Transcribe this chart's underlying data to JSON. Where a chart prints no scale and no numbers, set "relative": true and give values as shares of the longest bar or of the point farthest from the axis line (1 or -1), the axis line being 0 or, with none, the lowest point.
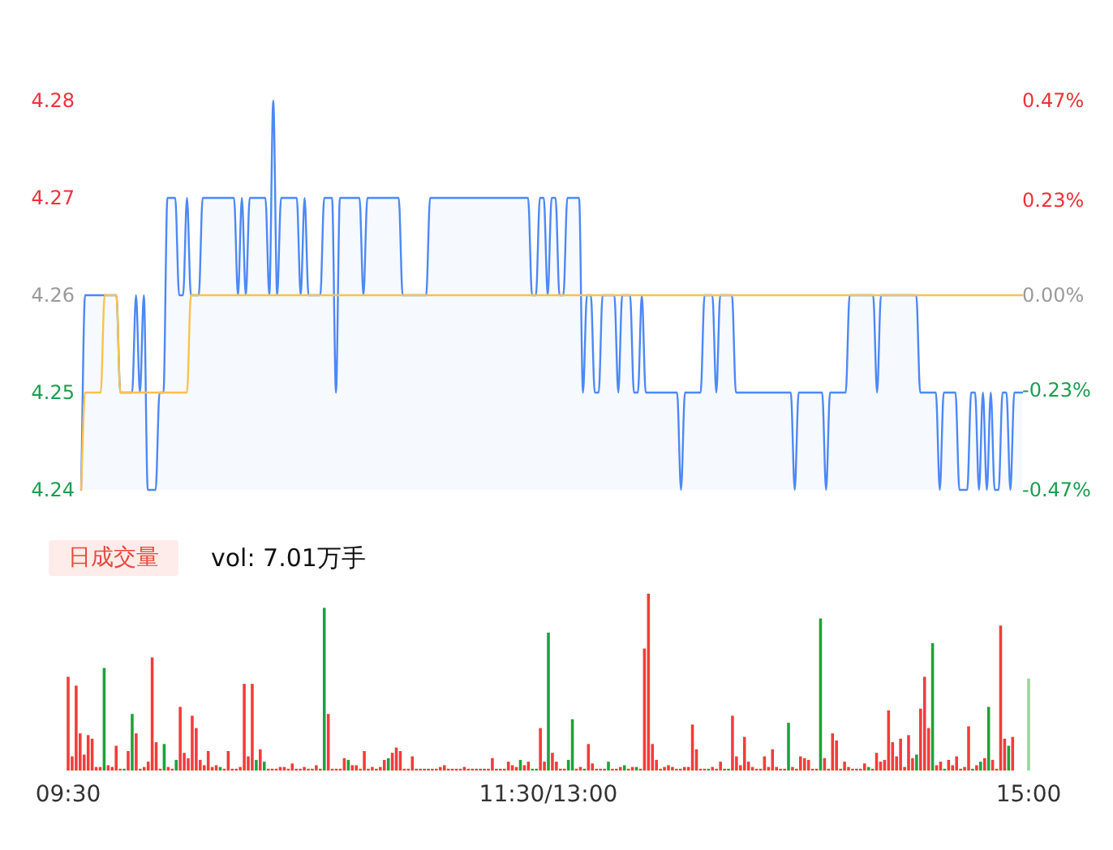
{
  "chart_data": [
    {
      "type": "area",
      "ylim": [
        4.24,
        4.28
      ],
      "yticks": [
        4.24,
        4.25,
        4.26,
        4.27,
        4.28
      ],
      "y2lim": [
        -0.47,
        0.47
      ],
      "y2ticks": [
        {
          "value": -0.47,
          "label": "-0.47%"
        },
        {
          "value": -0.23,
          "label": "-0.23%"
        },
        {
          "value": 0,
          "label": "0.00%"
        },
        {
          "value": 0.23,
          "label": "0.23%"
        },
        {
          "value": 0.47,
          "label": "0.47%"
        }
      ],
      "tick_labels": "y",
      "categories": [
        null,
        null,
        null,
        null,
        null,
        null,
        null,
        null,
        null,
        null,
        null,
        null,
        null,
        null,
        null,
        null,
        null,
        null,
        null,
        null,
        null,
        null,
        null,
        null,
        null,
        null,
        null,
        null,
        null,
        null,
        null,
        null,
        null,
        null,
        null,
        null,
        null,
        null,
        null,
        null,
        null,
        null,
        null,
        null,
        null,
        null,
        null,
        null,
        null,
        null,
        null,
        null,
        null,
        null,
        null,
        null,
        null,
        null,
        null,
        null,
        null,
        null,
        null,
        null,
        null,
        null,
        null,
        null,
        null,
        null,
        null,
        null,
        null,
        null,
        null,
        null,
        null,
        null,
        null,
        null,
        null,
        null,
        null,
        null,
        null,
        null,
        null,
        null,
        null,
        null,
        null,
        null,
        null,
        null,
        null,
        null,
        null,
        null,
        null,
        null,
        null,
        null,
        null,
        null,
        null,
        null,
        null,
        null,
        null,
        null,
        null,
        null,
        null,
        null,
        null,
        null,
        null,
        null,
        null,
        null,
        null,
        null,
        null,
        null,
        null,
        null,
        null,
        null,
        null,
        null,
        null,
        null,
        null,
        null,
        null,
        null,
        null,
        null,
        null,
        null,
        null,
        null,
        null,
        null,
        null,
        null,
        null,
        null,
        null,
        null,
        null,
        null,
        null,
        null,
        null,
        null,
        null,
        null,
        null,
        null,
        null,
        null,
        null,
        null,
        null,
        null,
        null,
        null,
        null,
        null,
        null,
        null,
        null,
        null,
        null,
        null,
        null,
        null,
        null,
        null,
        null,
        null,
        null,
        null,
        null,
        null,
        null,
        null,
        null,
        null,
        null,
        null,
        null,
        null,
        null,
        null,
        null,
        null,
        null,
        null,
        null,
        null,
        null,
        null,
        null,
        null,
        null,
        null,
        null,
        null,
        null,
        null,
        null,
        null,
        null,
        null,
        null,
        null,
        null,
        null,
        null,
        null,
        null,
        null,
        null,
        null,
        null,
        null,
        null,
        null,
        null,
        null,
        null,
        null,
        null,
        null,
        null,
        null,
        null,
        null,
        null
      ],
      "series": [
        {
          "color": "#4d88f5",
          "values": [
            4.24,
            4.26,
            4.26,
            4.26,
            4.26,
            4.26,
            4.26,
            4.26,
            4.26,
            4.26,
            4.25,
            4.25,
            4.25,
            4.25,
            4.26,
            4.25,
            4.26,
            4.24,
            4.24,
            4.24,
            4.25,
            4.25,
            4.27,
            4.27,
            4.27,
            4.26,
            4.26,
            4.27,
            4.26,
            4.26,
            4.26,
            4.27,
            4.27,
            4.27,
            4.27,
            4.27,
            4.27,
            4.27,
            4.27,
            4.27,
            4.26,
            4.27,
            4.26,
            4.27,
            4.27,
            4.27,
            4.27,
            4.27,
            4.26,
            4.28,
            4.26,
            4.27,
            4.27,
            4.27,
            4.27,
            4.27,
            4.26,
            4.27,
            4.26,
            4.26,
            4.26,
            4.26,
            4.27,
            4.27,
            4.27,
            4.25,
            4.27,
            4.27,
            4.27,
            4.27,
            4.27,
            4.27,
            4.26,
            4.27,
            4.27,
            4.27,
            4.27,
            4.27,
            4.27,
            4.27,
            4.27,
            4.27,
            4.26,
            4.26,
            4.26,
            4.26,
            4.26,
            4.26,
            4.26,
            4.27,
            4.27,
            4.27,
            4.27,
            4.27,
            4.27,
            4.27,
            4.27,
            4.27,
            4.27,
            4.27,
            4.27,
            4.27,
            4.27,
            4.27,
            4.27,
            4.27,
            4.27,
            4.27,
            4.27,
            4.27,
            4.27,
            4.27,
            4.27,
            4.27,
            4.27,
            4.26,
            4.26,
            4.27,
            4.27,
            4.26,
            4.27,
            4.27,
            4.26,
            4.26,
            4.27,
            4.27,
            4.27,
            4.27,
            4.25,
            4.26,
            4.26,
            4.25,
            4.25,
            4.26,
            4.26,
            4.26,
            4.26,
            4.25,
            4.26,
            4.26,
            4.26,
            4.25,
            4.25,
            4.26,
            4.25,
            4.25,
            4.25,
            4.25,
            4.25,
            4.25,
            4.25,
            4.25,
            4.25,
            4.24,
            4.25,
            4.25,
            4.25,
            4.25,
            4.25,
            4.26,
            4.26,
            4.26,
            4.25,
            4.26,
            4.26,
            4.26,
            4.26,
            4.25,
            4.25,
            4.25,
            4.25,
            4.25,
            4.25,
            4.25,
            4.25,
            4.25,
            4.25,
            4.25,
            4.25,
            4.25,
            4.25,
            4.25,
            4.24,
            4.25,
            4.25,
            4.25,
            4.25,
            4.25,
            4.25,
            4.25,
            4.24,
            4.25,
            4.25,
            4.25,
            4.25,
            4.25,
            4.26,
            4.26,
            4.26,
            4.26,
            4.26,
            4.26,
            4.26,
            4.25,
            4.26,
            4.26,
            4.26,
            4.26,
            4.26,
            4.26,
            4.26,
            4.26,
            4.26,
            4.26,
            4.25,
            4.25,
            4.25,
            4.25,
            4.25,
            4.24,
            4.25,
            4.25,
            4.25,
            4.25,
            4.24,
            4.24,
            4.24,
            4.25,
            4.25,
            4.24,
            4.25,
            4.24,
            4.25,
            4.24,
            4.24,
            4.25,
            4.25,
            4.24,
            4.25,
            4.25,
            4.25
          ]
        },
        {
          "type": "line",
          "color": "#f9c24e",
          "values": [
            4.24,
            4.25,
            4.25,
            4.25,
            4.25,
            4.25,
            4.26,
            4.26,
            4.26,
            4.26,
            4.25,
            4.25,
            4.25,
            4.25,
            4.25,
            4.25,
            4.25,
            4.25,
            4.25,
            4.25,
            4.25,
            4.25,
            4.25,
            4.25,
            4.25,
            4.25,
            4.25,
            4.25,
            4.26,
            4.26,
            4.26,
            4.26,
            4.26,
            4.26,
            4.26,
            4.26,
            4.26,
            4.26,
            4.26,
            4.26,
            4.26,
            4.26,
            4.26,
            4.26,
            4.26,
            4.26,
            4.26,
            4.26,
            4.26,
            4.26,
            4.26,
            4.26,
            4.26,
            4.26,
            4.26,
            4.26,
            4.26,
            4.26,
            4.26,
            4.26,
            4.26,
            4.26,
            4.26,
            4.26,
            4.26,
            4.26,
            4.26,
            4.26,
            4.26,
            4.26,
            4.26,
            4.26,
            4.26,
            4.26,
            4.26,
            4.26,
            4.26,
            4.26,
            4.26,
            4.26,
            4.26,
            4.26,
            4.26,
            4.26,
            4.26,
            4.26,
            4.26,
            4.26,
            4.26,
            4.26,
            4.26,
            4.26,
            4.26,
            4.26,
            4.26,
            4.26,
            4.26,
            4.26,
            4.26,
            4.26,
            4.26,
            4.26,
            4.26,
            4.26,
            4.26,
            4.26,
            4.26,
            4.26,
            4.26,
            4.26,
            4.26,
            4.26,
            4.26,
            4.26,
            4.26,
            4.26,
            4.26,
            4.26,
            4.26,
            4.26,
            4.26,
            4.26,
            4.26,
            4.26,
            4.26,
            4.26,
            4.26,
            4.26,
            4.26,
            4.26,
            4.26,
            4.26,
            4.26,
            4.26,
            4.26,
            4.26,
            4.26,
            4.26,
            4.26,
            4.26,
            4.26,
            4.26,
            4.26,
            4.26,
            4.26,
            4.26,
            4.26,
            4.26,
            4.26,
            4.26,
            4.26,
            4.26,
            4.26,
            4.26,
            4.26,
            4.26,
            4.26,
            4.26,
            4.26,
            4.26,
            4.26,
            4.26,
            4.26,
            4.26,
            4.26,
            4.26,
            4.26,
            4.26,
            4.26,
            4.26,
            4.26,
            4.26,
            4.26,
            4.26,
            4.26,
            4.26,
            4.26,
            4.26,
            4.26,
            4.26,
            4.26,
            4.26,
            4.26,
            4.26,
            4.26,
            4.26,
            4.26,
            4.26,
            4.26,
            4.26,
            4.26,
            4.26,
            4.26,
            4.26,
            4.26,
            4.26,
            4.26,
            4.26,
            4.26,
            4.26,
            4.26,
            4.26,
            4.26,
            4.26,
            4.26,
            4.26,
            4.26,
            4.26,
            4.26,
            4.26,
            4.26,
            4.26,
            4.26,
            4.26,
            4.26,
            4.26,
            4.26,
            4.26,
            4.26,
            4.26,
            4.26,
            4.26,
            4.26,
            4.26,
            4.26,
            4.26,
            4.26,
            4.26,
            4.26,
            4.26,
            4.26,
            4.26,
            4.26,
            4.26,
            4.26,
            4.26,
            4.26,
            4.26,
            4.26,
            4.26,
            4.26
          ]
        }
      ]
    },
    {
      "type": "bar",
      "title": "日成交量",
      "subtitle": "vol: 7.01万手",
      "relative": true,
      "categories": [
        "09:30",
        null,
        null,
        null,
        null,
        null,
        null,
        null,
        null,
        null,
        null,
        null,
        null,
        null,
        null,
        null,
        null,
        null,
        null,
        null,
        null,
        null,
        null,
        null,
        null,
        null,
        null,
        null,
        null,
        null,
        null,
        null,
        null,
        null,
        null,
        null,
        null,
        null,
        null,
        null,
        null,
        null,
        null,
        null,
        null,
        null,
        null,
        null,
        null,
        null,
        null,
        null,
        null,
        null,
        null,
        null,
        null,
        null,
        null,
        null,
        null,
        null,
        null,
        null,
        null,
        null,
        null,
        null,
        null,
        null,
        null,
        null,
        null,
        null,
        null,
        null,
        null,
        null,
        null,
        null,
        null,
        null,
        null,
        null,
        null,
        null,
        null,
        null,
        null,
        null,
        null,
        null,
        null,
        null,
        null,
        null,
        null,
        null,
        null,
        null,
        null,
        null,
        null,
        null,
        null,
        null,
        null,
        null,
        null,
        null,
        null,
        null,
        null,
        null,
        null,
        null,
        null,
        null,
        null,
        null,
        "11:30/13:00",
        null,
        null,
        null,
        null,
        null,
        null,
        null,
        null,
        null,
        null,
        null,
        null,
        null,
        null,
        null,
        null,
        null,
        null,
        null,
        null,
        null,
        null,
        null,
        null,
        null,
        null,
        null,
        null,
        null,
        null,
        null,
        null,
        null,
        null,
        null,
        null,
        null,
        null,
        null,
        null,
        null,
        null,
        null,
        null,
        null,
        null,
        null,
        null,
        null,
        null,
        null,
        null,
        null,
        null,
        null,
        null,
        null,
        null,
        null,
        null,
        null,
        null,
        null,
        null,
        null,
        null,
        null,
        null,
        null,
        null,
        null,
        null,
        null,
        null,
        null,
        null,
        null,
        null,
        null,
        null,
        null,
        null,
        null,
        null,
        null,
        null,
        null,
        null,
        null,
        null,
        null,
        null,
        null,
        null,
        null,
        null,
        null,
        null,
        null,
        null,
        null,
        null,
        null,
        null,
        null,
        null,
        null,
        null,
        null,
        null,
        null,
        null,
        null,
        null,
        null,
        null,
        null,
        null,
        null,
        "15:00"
      ],
      "values": [
        0.53,
        0.08,
        0.48,
        0.21,
        0.09,
        0.2,
        0.18,
        0.02,
        0.02,
        0.58,
        0.03,
        0.02,
        0.14,
        0.01,
        0.01,
        0.11,
        0.32,
        0.21,
        0.01,
        0.02,
        0.05,
        0.64,
        0.16,
        0.01,
        0.15,
        0.02,
        0.01,
        0.06,
        0.36,
        0.1,
        0.07,
        0.31,
        0.24,
        0.06,
        0.03,
        0.11,
        0.02,
        0.03,
        0.02,
        0.01,
        0.11,
        0.01,
        0.01,
        0.02,
        0.49,
        0.08,
        0.49,
        0.06,
        0.12,
        0.05,
        0.01,
        0.01,
        0.01,
        0.02,
        0.02,
        0.01,
        0.04,
        0.01,
        0.01,
        0.02,
        0.01,
        0.01,
        0.03,
        0.01,
        0.92,
        0.32,
        0.01,
        0.01,
        0.01,
        0.07,
        0.06,
        0.03,
        0.03,
        0.01,
        0.11,
        0.01,
        0.02,
        0.01,
        0.02,
        0.06,
        0.07,
        0.1,
        0.13,
        0.11,
        0.01,
        0.01,
        0.08,
        0.01,
        0.01,
        0.01,
        0.01,
        0.01,
        0.01,
        0.02,
        0.03,
        0.01,
        0.01,
        0.01,
        0.01,
        0.02,
        0.01,
        0.01,
        0.01,
        0.01,
        0.01,
        0.01,
        0.07,
        0.01,
        0.01,
        0.01,
        0.05,
        0.03,
        0.02,
        0.06,
        0.03,
        0.05,
        0.01,
        0.01,
        0.24,
        0.05,
        0.78,
        0.1,
        0.05,
        0.01,
        0.01,
        0.06,
        0.29,
        0.01,
        0.02,
        0.01,
        0.15,
        0.04,
        0.01,
        0.01,
        0.01,
        0.05,
        0.01,
        0.01,
        0.02,
        0.03,
        0.01,
        0.02,
        0.02,
        0.01,
        0.69,
        1,
        0.15,
        0.06,
        0.01,
        0.02,
        0.03,
        0.02,
        0.01,
        0.01,
        0.02,
        0.02,
        0.26,
        0.12,
        0.01,
        0.01,
        0.01,
        0.02,
        0.01,
        0.05,
        0.01,
        0.01,
        0.31,
        0.08,
        0.03,
        0.19,
        0.05,
        0.02,
        0.01,
        0.01,
        0.08,
        0.02,
        0.12,
        0.02,
        0.01,
        0.01,
        0.27,
        0.02,
        0.01,
        0.08,
        0.07,
        0.06,
        0.01,
        0.01,
        0.86,
        0.07,
        0.01,
        0.21,
        0.17,
        0.01,
        0.05,
        0.02,
        0.01,
        0.01,
        0.01,
        0.04,
        0.02,
        0.01,
        0.1,
        0.05,
        0.06,
        0.34,
        0.16,
        0.08,
        0.18,
        0.02,
        0.2,
        0.07,
        0.09,
        0.35,
        0.53,
        0.24,
        0.72,
        0.03,
        0.05,
        0.01,
        0.06,
        0.03,
        0.08,
        0.01,
        0.02,
        0.25,
        0.01,
        0.03,
        0.05,
        0.07,
        0.36,
        0.06,
        0.01,
        0.82,
        0.18,
        0.14,
        0.19,
        null,
        null,
        null,
        0.52
      ],
      "colors": [
        "#f53b3b",
        "#f53b3b",
        "#f53b3b",
        "#f53b3b",
        "#f53b3b",
        "#f53b3b",
        "#f53b3b",
        "#f53b3b",
        "#f53b3b",
        "#1ba33a",
        "#f53b3b",
        "#f53b3b",
        "#f53b3b",
        "#f53b3b",
        "#1ba33a",
        "#f53b3b",
        "#1ba33a",
        "#f53b3b",
        "#f53b3b",
        "#f53b3b",
        "#f53b3b",
        "#f53b3b",
        "#f53b3b",
        "#f53b3b",
        "#1ba33a",
        "#f53b3b",
        "#f53b3b",
        "#1ba33a",
        "#f53b3b",
        "#f53b3b",
        "#f53b3b",
        "#f53b3b",
        "#f53b3b",
        "#f53b3b",
        "#f53b3b",
        "#f53b3b",
        "#f53b3b",
        "#f53b3b",
        "#1ba33a",
        "#f53b3b",
        "#f53b3b",
        "#f53b3b",
        "#f53b3b",
        "#f53b3b",
        "#f53b3b",
        "#f53b3b",
        "#f53b3b",
        "#1ba33a",
        "#f53b3b",
        "#1ba33a",
        "#f53b3b",
        "#f53b3b",
        "#f53b3b",
        "#f53b3b",
        "#f53b3b",
        "#f53b3b",
        "#f53b3b",
        "#f53b3b",
        "#f53b3b",
        "#f53b3b",
        "#f53b3b",
        "#f53b3b",
        "#f53b3b",
        "#f53b3b",
        "#1ba33a",
        "#f53b3b",
        "#f53b3b",
        "#f53b3b",
        "#f53b3b",
        "#f53b3b",
        "#1ba33a",
        "#f53b3b",
        "#f53b3b",
        "#f53b3b",
        "#f53b3b",
        "#f53b3b",
        "#f53b3b",
        "#f53b3b",
        "#f53b3b",
        "#f53b3b",
        "#1ba33a",
        "#f53b3b",
        "#f53b3b",
        "#f53b3b",
        "#f53b3b",
        "#f53b3b",
        "#f53b3b",
        "#f53b3b",
        "#f53b3b",
        "#f53b3b",
        "#f53b3b",
        "#f53b3b",
        "#f53b3b",
        "#f53b3b",
        "#f53b3b",
        "#f53b3b",
        "#f53b3b",
        "#f53b3b",
        "#f53b3b",
        "#f53b3b",
        "#f53b3b",
        "#f53b3b",
        "#f53b3b",
        "#f53b3b",
        "#f53b3b",
        "#f53b3b",
        "#f53b3b",
        "#f53b3b",
        "#f53b3b",
        "#f53b3b",
        "#f53b3b",
        "#f53b3b",
        "#f53b3b",
        "#1ba33a",
        "#f53b3b",
        "#f53b3b",
        "#1ba33a",
        "#1ba33a",
        "#f53b3b",
        "#f53b3b",
        "#1ba33a",
        "#f53b3b",
        "#f53b3b",
        "#f53b3b",
        "#f53b3b",
        "#1ba33a",
        "#1ba33a",
        "#f53b3b",
        "#f53b3b",
        "#1ba33a",
        "#f53b3b",
        "#f53b3b",
        "#f53b3b",
        "#f53b3b",
        "#f53b3b",
        "#1ba33a",
        "#f53b3b",
        "#f53b3b",
        "#f53b3b",
        "#1ba33a",
        "#f53b3b",
        "#f53b3b",
        "#1ba33a",
        "#f53b3b",
        "#f53b3b",
        "#f53b3b",
        "#f53b3b",
        "#f53b3b",
        "#f53b3b",
        "#f53b3b",
        "#f53b3b",
        "#f53b3b",
        "#f53b3b",
        "#f53b3b",
        "#f53b3b",
        "#f53b3b",
        "#f53b3b",
        "#f53b3b",
        "#f53b3b",
        "#f53b3b",
        "#1ba33a",
        "#f53b3b",
        "#f53b3b",
        "#f53b3b",
        "#f53b3b",
        "#1ba33a",
        "#f53b3b",
        "#f53b3b",
        "#f53b3b",
        "#f53b3b",
        "#f53b3b",
        "#f53b3b",
        "#f53b3b",
        "#f53b3b",
        "#f53b3b",
        "#f53b3b",
        "#f53b3b",
        "#f53b3b",
        "#f53b3b",
        "#f53b3b",
        "#1ba33a",
        "#f53b3b",
        "#f53b3b",
        "#f53b3b",
        "#f53b3b",
        "#f53b3b",
        "#f53b3b",
        "#f53b3b",
        "#1ba33a",
        "#f53b3b",
        "#f53b3b",
        "#f53b3b",
        "#f53b3b",
        "#f53b3b",
        "#f53b3b",
        "#f53b3b",
        "#f53b3b",
        "#f53b3b",
        "#f53b3b",
        "#f53b3b",
        "#1ba33a",
        "#f53b3b",
        "#f53b3b",
        "#f53b3b",
        "#f53b3b",
        "#f53b3b",
        "#f53b3b",
        "#f53b3b",
        "#f53b3b",
        "#f53b3b",
        "#f53b3b",
        "#f53b3b",
        "#1ba33a",
        "#f53b3b",
        "#f53b3b",
        "#f53b3b",
        "#1ba33a",
        "#f53b3b",
        "#f53b3b",
        "#1ba33a",
        "#f53b3b",
        "#f53b3b",
        "#f53b3b",
        "#f53b3b",
        "#f53b3b",
        "#f53b3b",
        "#1ba33a",
        "#f53b3b",
        "#1ba33a",
        "#f53b3b",
        "#1ba33a",
        "#f53b3b",
        "#f53b3b",
        "#f53b3b",
        "#f53b3b",
        "#1ba33a",
        "#f53b3b",
        null,
        null,
        null,
        "#8ed99b"
      ]
    }
  ]
}
